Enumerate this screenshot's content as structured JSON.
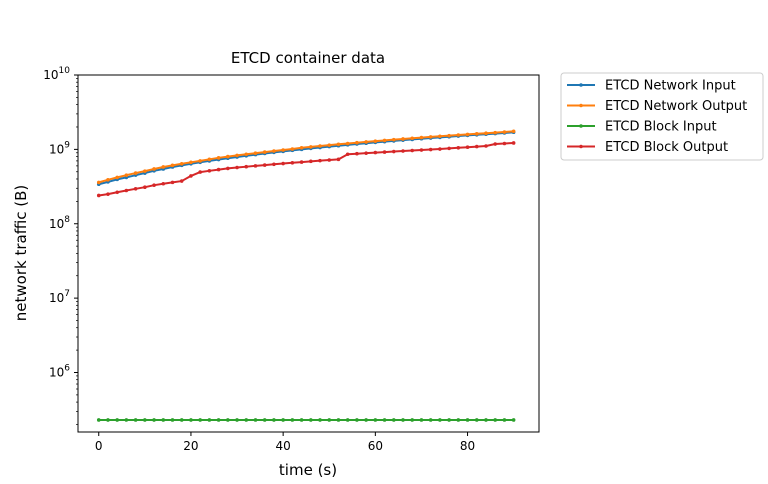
{
  "chart_data": {
    "type": "line",
    "title": "ETCD container data",
    "xlabel": "time (s)",
    "ylabel": "network traffic (B)",
    "xlim": [
      -4.5,
      95.5
    ],
    "ylim_log10": [
      5.2,
      10.0
    ],
    "yscale": "log",
    "grid": false,
    "legend_placement": "outside-top-right",
    "x_ticks": [
      {
        "value": 0,
        "label": "0"
      },
      {
        "value": 20,
        "label": "20"
      },
      {
        "value": 40,
        "label": "40"
      },
      {
        "value": 60,
        "label": "60"
      },
      {
        "value": 80,
        "label": "80"
      }
    ],
    "y_ticks": [
      {
        "exp": 6,
        "base": "10",
        "sup": "6"
      },
      {
        "exp": 7,
        "base": "10",
        "sup": "7"
      },
      {
        "exp": 8,
        "base": "10",
        "sup": "8"
      },
      {
        "exp": 9,
        "base": "10",
        "sup": "9"
      },
      {
        "exp": 10,
        "base": "10",
        "sup": "10"
      }
    ],
    "x": [
      0,
      2,
      4,
      6,
      8,
      10,
      12,
      14,
      16,
      18,
      20,
      22,
      24,
      26,
      28,
      30,
      32,
      34,
      36,
      38,
      40,
      42,
      44,
      46,
      48,
      50,
      52,
      54,
      56,
      58,
      60,
      62,
      64,
      66,
      68,
      70,
      72,
      74,
      76,
      78,
      80,
      82,
      84,
      86,
      88,
      90
    ],
    "series": [
      {
        "name": "ETCD Network Input",
        "color": "#1f77b4",
        "values": [
          340000000.0,
          365000000.0,
          395000000.0,
          420000000.0,
          450000000.0,
          480000000.0,
          515000000.0,
          545000000.0,
          580000000.0,
          610000000.0,
          640000000.0,
          670000000.0,
          700000000.0,
          730000000.0,
          760000000.0,
          790000000.0,
          820000000.0,
          850000000.0,
          880000000.0,
          910000000.0,
          940000000.0,
          970000000.0,
          1000000000.0,
          1030000000.0,
          1060000000.0,
          1090000000.0,
          1120000000.0,
          1150000000.0,
          1180000000.0,
          1210000000.0,
          1240000000.0,
          1270000000.0,
          1300000000.0,
          1330000000.0,
          1360000000.0,
          1390000000.0,
          1420000000.0,
          1450000000.0,
          1480000000.0,
          1510000000.0,
          1540000000.0,
          1570000000.0,
          1600000000.0,
          1630000000.0,
          1660000000.0,
          1700000000.0
        ]
      },
      {
        "name": "ETCD Network Output",
        "color": "#ff7f0e",
        "values": [
          360000000.0,
          390000000.0,
          420000000.0,
          450000000.0,
          480000000.0,
          510000000.0,
          545000000.0,
          580000000.0,
          610000000.0,
          640000000.0,
          670000000.0,
          700000000.0,
          735000000.0,
          770000000.0,
          800000000.0,
          830000000.0,
          860000000.0,
          890000000.0,
          920000000.0,
          950000000.0,
          980000000.0,
          1010000000.0,
          1050000000.0,
          1080000000.0,
          1110000000.0,
          1140000000.0,
          1170000000.0,
          1200000000.0,
          1230000000.0,
          1260000000.0,
          1290000000.0,
          1320000000.0,
          1350000000.0,
          1380000000.0,
          1410000000.0,
          1440000000.0,
          1470000000.0,
          1500000000.0,
          1530000000.0,
          1560000000.0,
          1590000000.0,
          1620000000.0,
          1650000000.0,
          1680000000.0,
          1710000000.0,
          1750000000.0
        ]
      },
      {
        "name": "ETCD Block Input",
        "color": "#2ca02c",
        "values": [
          230000.0,
          230000.0,
          230000.0,
          230000.0,
          230000.0,
          230000.0,
          230000.0,
          230000.0,
          230000.0,
          230000.0,
          230000.0,
          230000.0,
          230000.0,
          230000.0,
          230000.0,
          230000.0,
          230000.0,
          230000.0,
          230000.0,
          230000.0,
          230000.0,
          230000.0,
          230000.0,
          230000.0,
          230000.0,
          230000.0,
          230000.0,
          230000.0,
          230000.0,
          230000.0,
          230000.0,
          230000.0,
          230000.0,
          230000.0,
          230000.0,
          230000.0,
          230000.0,
          230000.0,
          230000.0,
          230000.0,
          230000.0,
          230000.0,
          230000.0,
          230000.0,
          230000.0,
          230000.0
        ]
      },
      {
        "name": "ETCD Block Output",
        "color": "#d62728",
        "values": [
          240000000.0,
          250000000.0,
          265000000.0,
          280000000.0,
          295000000.0,
          310000000.0,
          330000000.0,
          345000000.0,
          360000000.0,
          375000000.0,
          440000000.0,
          495000000.0,
          515000000.0,
          535000000.0,
          555000000.0,
          570000000.0,
          585000000.0,
          600000000.0,
          615000000.0,
          630000000.0,
          645000000.0,
          660000000.0,
          675000000.0,
          690000000.0,
          705000000.0,
          720000000.0,
          735000000.0,
          860000000.0,
          875000000.0,
          890000000.0,
          905000000.0,
          920000000.0,
          935000000.0,
          950000000.0,
          965000000.0,
          980000000.0,
          995000000.0,
          1010000000.0,
          1030000000.0,
          1050000000.0,
          1070000000.0,
          1090000000.0,
          1110000000.0,
          1180000000.0,
          1200000000.0,
          1220000000.0
        ]
      }
    ]
  }
}
